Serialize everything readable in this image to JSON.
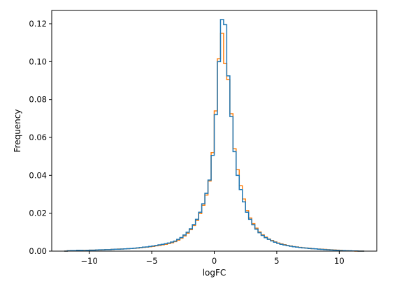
{
  "chart_data": {
    "type": "histogram",
    "title": "",
    "xlabel": "logFC",
    "ylabel": "Frequency",
    "xlim": [
      -13.0,
      13.0
    ],
    "ylim": [
      0.0,
      0.127
    ],
    "xticks": [
      -10,
      -5,
      0,
      5,
      10
    ],
    "yticks": [
      0.0,
      0.02,
      0.04,
      0.06,
      0.08,
      0.1,
      0.12
    ],
    "xtick_labels": [
      "−10",
      "−5",
      "0",
      "5",
      "10"
    ],
    "ytick_labels": [
      "0.00",
      "0.02",
      "0.04",
      "0.06",
      "0.08",
      "0.10",
      "0.12"
    ],
    "grid": false,
    "legend": "none",
    "bin_width": 0.25,
    "series": [
      {
        "color": "#ff7f0e",
        "x_start": -12.0,
        "values": [
          0.0,
          0.0002,
          0.0003,
          0.0003,
          0.0004,
          0.0003,
          0.0004,
          0.0004,
          0.0005,
          0.0005,
          0.0006,
          0.0006,
          0.0007,
          0.0008,
          0.0008,
          0.0009,
          0.001,
          0.0011,
          0.0011,
          0.0012,
          0.0013,
          0.0014,
          0.0015,
          0.0016,
          0.0018,
          0.002,
          0.0021,
          0.0023,
          0.0025,
          0.0028,
          0.003,
          0.0033,
          0.0036,
          0.004,
          0.0044,
          0.005,
          0.0058,
          0.0068,
          0.008,
          0.0095,
          0.0113,
          0.0135,
          0.0162,
          0.0198,
          0.0242,
          0.0296,
          0.037,
          0.052,
          0.074,
          0.1015,
          0.115,
          0.099,
          0.0905,
          0.0725,
          0.054,
          0.043,
          0.0345,
          0.0275,
          0.0214,
          0.0175,
          0.0145,
          0.0121,
          0.0101,
          0.0086,
          0.0074,
          0.0064,
          0.0056,
          0.0049,
          0.0043,
          0.0038,
          0.0034,
          0.003,
          0.0027,
          0.0024,
          0.0022,
          0.002,
          0.0018,
          0.0016,
          0.0015,
          0.0013,
          0.0012,
          0.0011,
          0.001,
          0.0009,
          0.0008,
          0.0007,
          0.0006,
          0.0005,
          0.0004,
          0.0003,
          0.0002,
          0.0001,
          0.0001,
          0.0,
          0.0,
          0.0
        ]
      },
      {
        "color": "#1f77b4",
        "x_start": -12.0,
        "values": [
          0.0,
          0.0002,
          0.0003,
          0.0003,
          0.0004,
          0.0004,
          0.0003,
          0.0004,
          0.0005,
          0.0005,
          0.0006,
          0.0007,
          0.0007,
          0.0008,
          0.0008,
          0.0009,
          0.001,
          0.001,
          0.0011,
          0.0012,
          0.0013,
          0.0014,
          0.0015,
          0.0017,
          0.0019,
          0.0021,
          0.0022,
          0.0025,
          0.0027,
          0.003,
          0.0033,
          0.0036,
          0.0039,
          0.0043,
          0.0048,
          0.0053,
          0.0062,
          0.0072,
          0.0085,
          0.01,
          0.0118,
          0.014,
          0.0168,
          0.0205,
          0.025,
          0.0305,
          0.0375,
          0.0505,
          0.072,
          0.1,
          0.1222,
          0.1195,
          0.0925,
          0.071,
          0.0525,
          0.04,
          0.0325,
          0.026,
          0.0205,
          0.0168,
          0.0139,
          0.0116,
          0.0097,
          0.0083,
          0.0071,
          0.0062,
          0.0054,
          0.0047,
          0.0041,
          0.0036,
          0.0032,
          0.0029,
          0.0026,
          0.0023,
          0.0021,
          0.0019,
          0.0017,
          0.0016,
          0.0014,
          0.0013,
          0.0012,
          0.001,
          0.0009,
          0.0008,
          0.0007,
          0.0006,
          0.0005,
          0.0004,
          0.0003,
          0.0003,
          0.0002,
          0.0002,
          0.0001,
          0.0001,
          0.0,
          0.0
        ]
      }
    ]
  }
}
